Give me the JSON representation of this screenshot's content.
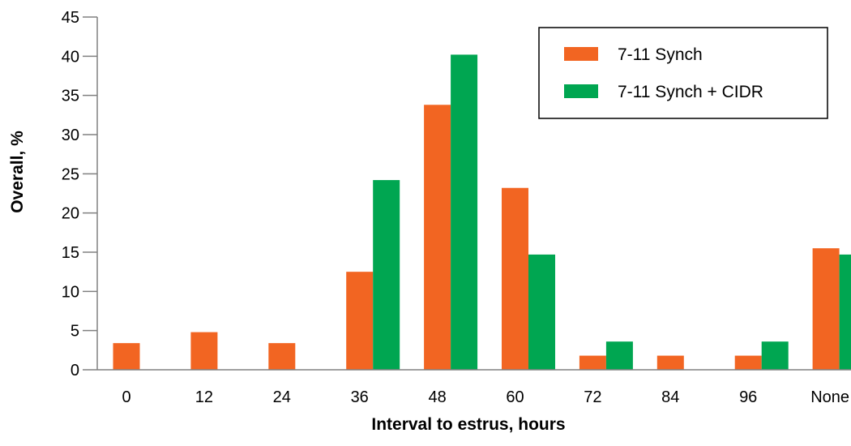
{
  "chart_data": {
    "type": "bar",
    "categories": [
      "0",
      "12",
      "24",
      "36",
      "48",
      "60",
      "72",
      "84",
      "96",
      "None"
    ],
    "series": [
      {
        "name": "7-11 Synch",
        "color": "#f26522",
        "values": [
          3.4,
          4.8,
          3.4,
          12.5,
          33.8,
          23.2,
          1.8,
          1.8,
          1.8,
          15.5
        ]
      },
      {
        "name": "7-11 Synch + CIDR",
        "color": "#00a651",
        "values": [
          0,
          0,
          0,
          24.2,
          40.2,
          14.7,
          3.6,
          0,
          3.6,
          14.7
        ]
      }
    ],
    "xlabel": "Interval to estrus, hours",
    "ylabel": "Overall, %",
    "ylim": [
      0,
      45
    ],
    "yticks": [
      "0",
      "5",
      "10",
      "15",
      "20",
      "25",
      "30",
      "35",
      "40",
      "45"
    ],
    "grid": false,
    "legend_position": "top-right"
  }
}
